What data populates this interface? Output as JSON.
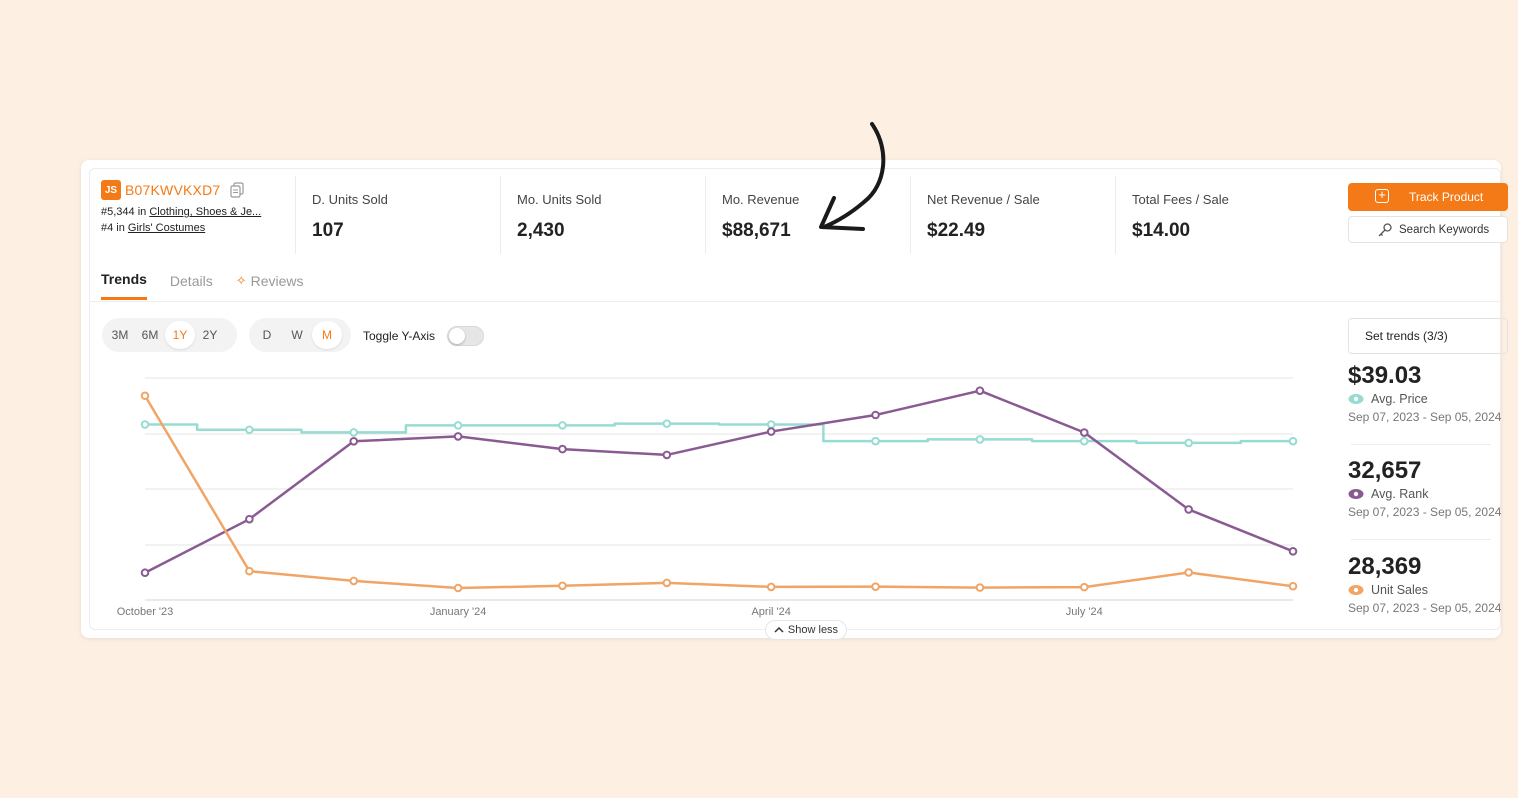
{
  "product": {
    "logo": "JS",
    "asin": "B07KWVKXD7",
    "rank1_prefix": "#5,344 in ",
    "rank1_category": "Clothing, Shoes & Je...",
    "rank2_prefix": "#4 in ",
    "rank2_category": "Girls' Costumes"
  },
  "metrics": [
    {
      "label": "D. Units Sold",
      "value": "107"
    },
    {
      "label": "Mo. Units Sold",
      "value": "2,430"
    },
    {
      "label": "Mo. Revenue",
      "value": "$88,671"
    },
    {
      "label": "Net Revenue / Sale",
      "value": "$22.49"
    },
    {
      "label": "Total Fees / Sale",
      "value": "$14.00"
    }
  ],
  "actions": {
    "track_label": "Track Product",
    "search_label": "Search Keywords"
  },
  "tabs": [
    {
      "label": "Trends",
      "active": true
    },
    {
      "label": "Details",
      "active": false
    },
    {
      "label": "Reviews",
      "active": false
    }
  ],
  "range_options": [
    "3M",
    "6M",
    "1Y",
    "2Y"
  ],
  "range_selected": "1Y",
  "interval_options": [
    "D",
    "W",
    "M"
  ],
  "interval_selected": "M",
  "toggle_label": "Toggle Y-Axis",
  "toggle_on": false,
  "set_trends_label": "Set trends (3/3)",
  "show_less_label": "Show less",
  "colors": {
    "accent": "#f47a17",
    "price": "#96dcd2",
    "rank": "#8a5a93",
    "sales": "#f0a566"
  },
  "stats": [
    {
      "value": "$39.03",
      "name": "Avg. Price",
      "dates": "Sep 07, 2023 - Sep 05, 2024",
      "color": "#96dcd2",
      "icon": "eye-icon"
    },
    {
      "value": "32,657",
      "name": "Avg. Rank",
      "dates": "Sep 07, 2023 - Sep 05, 2024",
      "color": "#8a5a93",
      "icon": "eye-icon"
    },
    {
      "value": "28,369",
      "name": "Unit Sales",
      "dates": "Sep 07, 2023 - Sep 05, 2024",
      "color": "#f0a566",
      "icon": "eye-icon"
    }
  ],
  "chart_data": {
    "type": "line",
    "x": [
      "2023-10-01",
      "2023-11-01",
      "2023-12-01",
      "2024-01-01",
      "2024-02-01",
      "2024-03-01",
      "2024-04-01",
      "2024-05-01",
      "2024-06-01",
      "2024-07-01",
      "2024-08-01",
      "2024-09-01"
    ],
    "tick_labels": [
      "October '23",
      "January '24",
      "April '24",
      "July '24"
    ],
    "tick_index": [
      0,
      3,
      6,
      9
    ],
    "grid": true,
    "y_axis_labels_shown": false,
    "series": [
      {
        "name": "Avg. Price",
        "style": "step",
        "values": [
          40.5,
          39.9,
          39.6,
          40.4,
          40.4,
          40.6,
          40.5,
          38.6,
          38.8,
          38.6,
          38.4,
          38.6
        ],
        "ylim": [
          20.5,
          45.8
        ]
      },
      {
        "name": "Avg. Rank",
        "style": "line",
        "values": [
          48000,
          42500,
          34500,
          34000,
          35300,
          35900,
          33500,
          31800,
          29300,
          33600,
          41500,
          45800
        ],
        "ylim": [
          50800,
          28000
        ]
      },
      {
        "name": "Unit Sales",
        "style": "line",
        "values": [
          4600,
          650,
          430,
          270,
          320,
          385,
          295,
          300,
          280,
          290,
          620,
          310
        ],
        "ylim": [
          0,
          5000
        ]
      }
    ]
  }
}
